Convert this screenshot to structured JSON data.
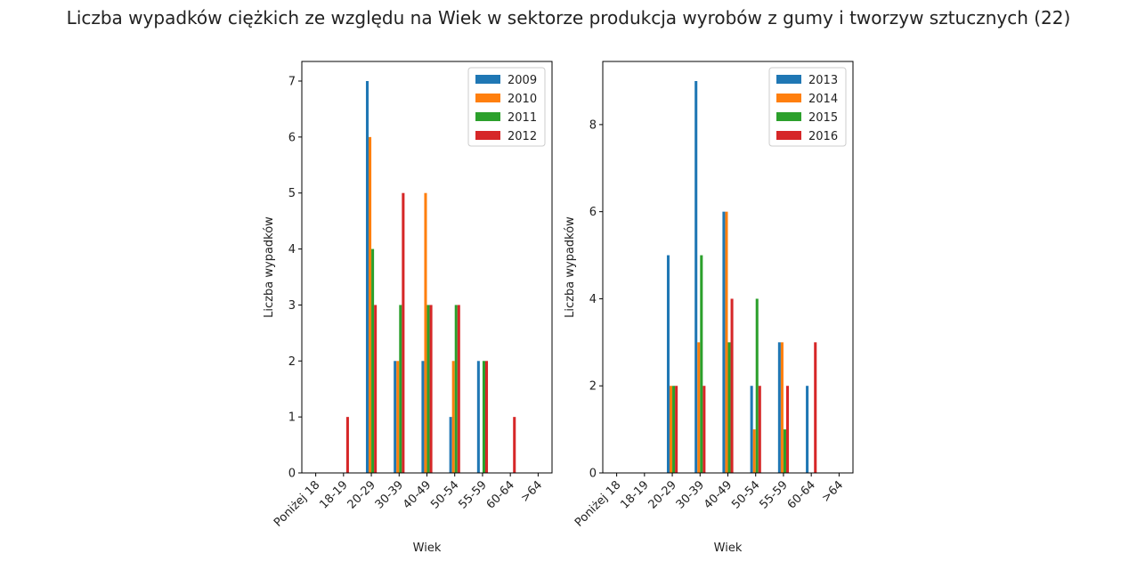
{
  "title": "Liczba wypadków ciężkich ze względu na Wiek w sektorze produkcja wyrobów z gumy i tworzyw sztucznych (22)",
  "chart_data": [
    {
      "type": "bar",
      "xlabel": "Wiek",
      "ylabel": "Liczba wypadków",
      "categories": [
        "Poniżej 18",
        "18-19",
        "20-29",
        "30-39",
        "40-49",
        "50-54",
        "55-59",
        "60-64",
        ">64"
      ],
      "ylim": [
        0,
        7.35
      ],
      "yticks": [
        0,
        1,
        2,
        3,
        4,
        5,
        6,
        7
      ],
      "grid": false,
      "legend": "top-right",
      "series": [
        {
          "name": "2009",
          "color": "#1f77b4",
          "values": [
            0,
            0,
            7,
            2,
            2,
            1,
            2,
            0,
            0
          ]
        },
        {
          "name": "2010",
          "color": "#ff7f0e",
          "values": [
            0,
            0,
            6,
            2,
            5,
            2,
            0,
            0,
            0
          ]
        },
        {
          "name": "2011",
          "color": "#2ca02c",
          "values": [
            0,
            0,
            4,
            3,
            3,
            3,
            2,
            0,
            0
          ]
        },
        {
          "name": "2012",
          "color": "#d62728",
          "values": [
            0,
            1,
            3,
            5,
            3,
            3,
            2,
            1,
            0
          ]
        }
      ]
    },
    {
      "type": "bar",
      "xlabel": "Wiek",
      "ylabel": "Liczba wypadków",
      "categories": [
        "Poniżej 18",
        "18-19",
        "20-29",
        "30-39",
        "40-49",
        "50-54",
        "55-59",
        "60-64",
        ">64"
      ],
      "ylim": [
        0,
        9.45
      ],
      "yticks": [
        0,
        2,
        4,
        6,
        8
      ],
      "grid": false,
      "legend": "top-right",
      "series": [
        {
          "name": "2013",
          "color": "#1f77b4",
          "values": [
            0,
            0,
            5,
            9,
            6,
            2,
            3,
            2,
            0
          ]
        },
        {
          "name": "2014",
          "color": "#ff7f0e",
          "values": [
            0,
            0,
            2,
            3,
            6,
            1,
            3,
            0,
            0
          ]
        },
        {
          "name": "2015",
          "color": "#2ca02c",
          "values": [
            0,
            0,
            2,
            5,
            3,
            4,
            1,
            0,
            0
          ]
        },
        {
          "name": "2016",
          "color": "#d62728",
          "values": [
            0,
            0,
            2,
            2,
            4,
            2,
            2,
            3,
            0
          ]
        }
      ]
    }
  ]
}
